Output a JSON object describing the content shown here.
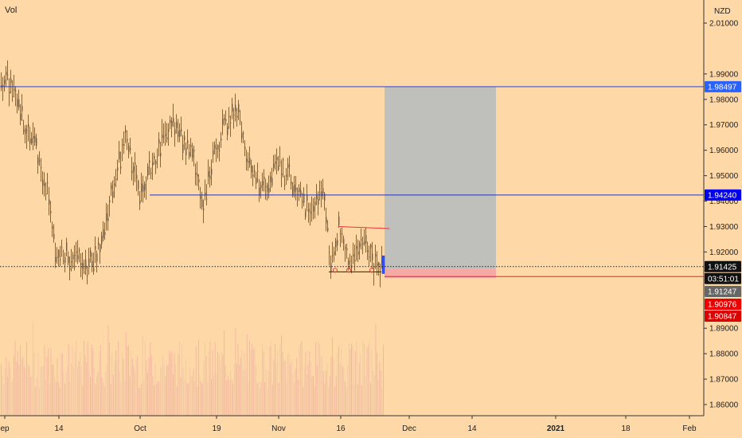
{
  "legend": {
    "vol_label": "Vol"
  },
  "price_axis": {
    "currency": "NZD"
  },
  "chart_data": {
    "type": "candlestick",
    "yaxis": {
      "ticks": [
        "2.01000",
        "1.99000",
        "1.98000",
        "1.97000",
        "1.96000",
        "1.95000",
        "1.94000",
        "1.93000",
        "1.92000",
        "1.89000",
        "1.88000",
        "1.87000",
        "1.86000"
      ],
      "tick_values": [
        2.01,
        1.99,
        1.98,
        1.97,
        1.96,
        1.95,
        1.94,
        1.93,
        1.92,
        1.89,
        1.88,
        1.87,
        1.86
      ],
      "ylim": [
        1.853,
        2.018
      ]
    },
    "xaxis": {
      "labels": [
        "ep",
        "14",
        "Oct",
        "19",
        "Nov",
        "16",
        "Dec",
        "14",
        "2021",
        "18",
        "Feb"
      ],
      "bold_labels": [
        "2021"
      ]
    },
    "horizontal_lines": [
      {
        "price": 1.98497,
        "color": "#3344cc",
        "label": "1.98497",
        "label_bg": "#2962ff"
      },
      {
        "price": 1.9424,
        "color": "#2233bb",
        "label": "1.94240",
        "label_bg": "#0000ee"
      }
    ],
    "current_price": {
      "price": 1.91425,
      "label": "1.91425",
      "countdown": "03:51:01"
    },
    "price_labels": [
      {
        "price": 1.91247,
        "label": "1.91247",
        "bg": "#666666"
      },
      {
        "price": 1.90976,
        "label": "1.90976",
        "bg": "#ee0000"
      },
      {
        "price": 1.90847,
        "label": "1.90847",
        "bg": "#dd0000"
      }
    ],
    "position": {
      "entry": 1.9135,
      "target": 1.98497,
      "stop": 1.9122,
      "profit_color": "#a8c4dc",
      "loss_color": "#f4a4a4"
    },
    "stop_line": {
      "price": 1.9122,
      "color": "#ee2222"
    },
    "resistance_line": {
      "price_start": 1.93,
      "price_end": 1.9292,
      "color": "#ee3333"
    },
    "support_line": {
      "price": 1.9125,
      "color": "#222222"
    },
    "series": [
      {
        "name": "Vol",
        "type": "volume"
      }
    ]
  }
}
